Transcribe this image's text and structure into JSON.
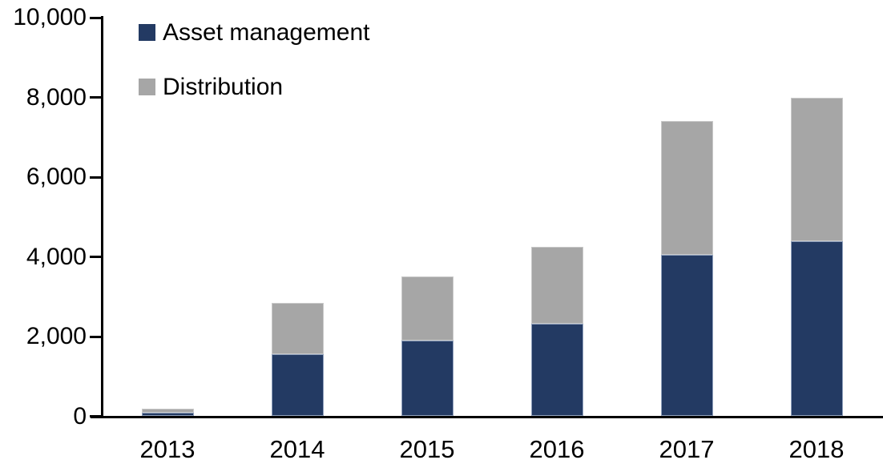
{
  "chart_data": {
    "type": "bar",
    "stacked": true,
    "title": "",
    "xlabel": "",
    "ylabel": "",
    "categories": [
      "2013",
      "2014",
      "2015",
      "2016",
      "2017",
      "2018"
    ],
    "series": [
      {
        "name": "Asset management",
        "color": "#233A63",
        "edge_color": "#8FA0BC",
        "values": [
          100,
          1550,
          1900,
          2320,
          4050,
          4400
        ]
      },
      {
        "name": "Distribution",
        "color": "#A6A6A6",
        "edge_color": "#C9C9C9",
        "values": [
          100,
          1300,
          1600,
          1930,
          3350,
          3600
        ]
      }
    ],
    "totals": [
      200,
      2850,
      3500,
      4250,
      7400,
      8000
    ],
    "ylim": [
      0,
      10000
    ],
    "yticks": [
      0,
      2000,
      4000,
      6000,
      8000,
      10000
    ],
    "ytick_labels": [
      "0",
      "2,000",
      "4,000",
      "6,000",
      "8,000",
      "10,000"
    ],
    "grid": false,
    "legend_position": "top-left",
    "axis_color": "#000000",
    "background_color": "#FFFFFF"
  }
}
